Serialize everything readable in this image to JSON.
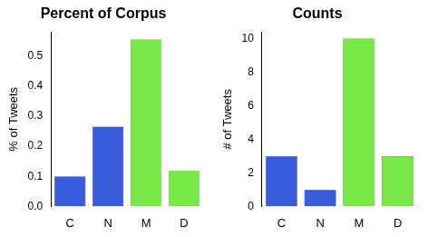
{
  "chart_data": [
    {
      "type": "bar",
      "title": "Percent of Corpus",
      "y_label": "% of Tweets",
      "categories": [
        "C",
        "N",
        "M",
        "D"
      ],
      "values": [
        0.1,
        0.265,
        0.555,
        0.12
      ],
      "colors": [
        "#3a5bdc",
        "#3a5bdc",
        "#7be84a",
        "#7be84a"
      ],
      "ylim": [
        0,
        0.58
      ],
      "yticks": [
        {
          "value": 0,
          "label": "0.0"
        },
        0.1,
        0.2,
        0.3,
        0.4,
        0.5
      ],
      "grid": false
    },
    {
      "type": "bar",
      "title": "Counts",
      "y_label": "# of Tweets",
      "categories": [
        "C",
        "N",
        "M",
        "D"
      ],
      "values": [
        3,
        1,
        10,
        3
      ],
      "colors": [
        "#3a5bdc",
        "#3a5bdc",
        "#7be84a",
        "#7be84a"
      ],
      "ylim": [
        0,
        10.4
      ],
      "yticks": [
        0,
        2,
        4,
        6,
        8,
        10
      ],
      "grid": false
    }
  ]
}
